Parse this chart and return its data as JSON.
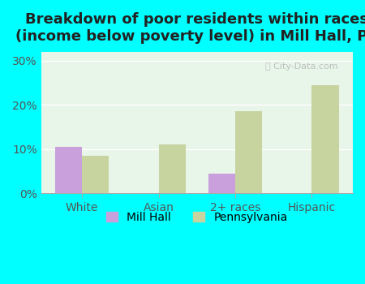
{
  "title": "Breakdown of poor residents within races\n(income below poverty level) in Mill Hall, PA",
  "categories": [
    "White",
    "Asian",
    "2+ races",
    "Hispanic"
  ],
  "mill_hall_values": [
    10.5,
    0,
    4.5,
    0
  ],
  "pennsylvania_values": [
    8.5,
    11.0,
    18.5,
    24.5
  ],
  "mill_hall_color": "#c9a0dc",
  "pennsylvania_color": "#c8d4a0",
  "background_color": "#00ffff",
  "plot_bg_color": "#e8f5e9",
  "ylim": [
    0,
    32
  ],
  "yticks": [
    0,
    10,
    20,
    30
  ],
  "ytick_labels": [
    "0%",
    "10%",
    "20%",
    "30%"
  ],
  "bar_width": 0.35,
  "title_fontsize": 13,
  "tick_fontsize": 10,
  "legend_fontsize": 10
}
